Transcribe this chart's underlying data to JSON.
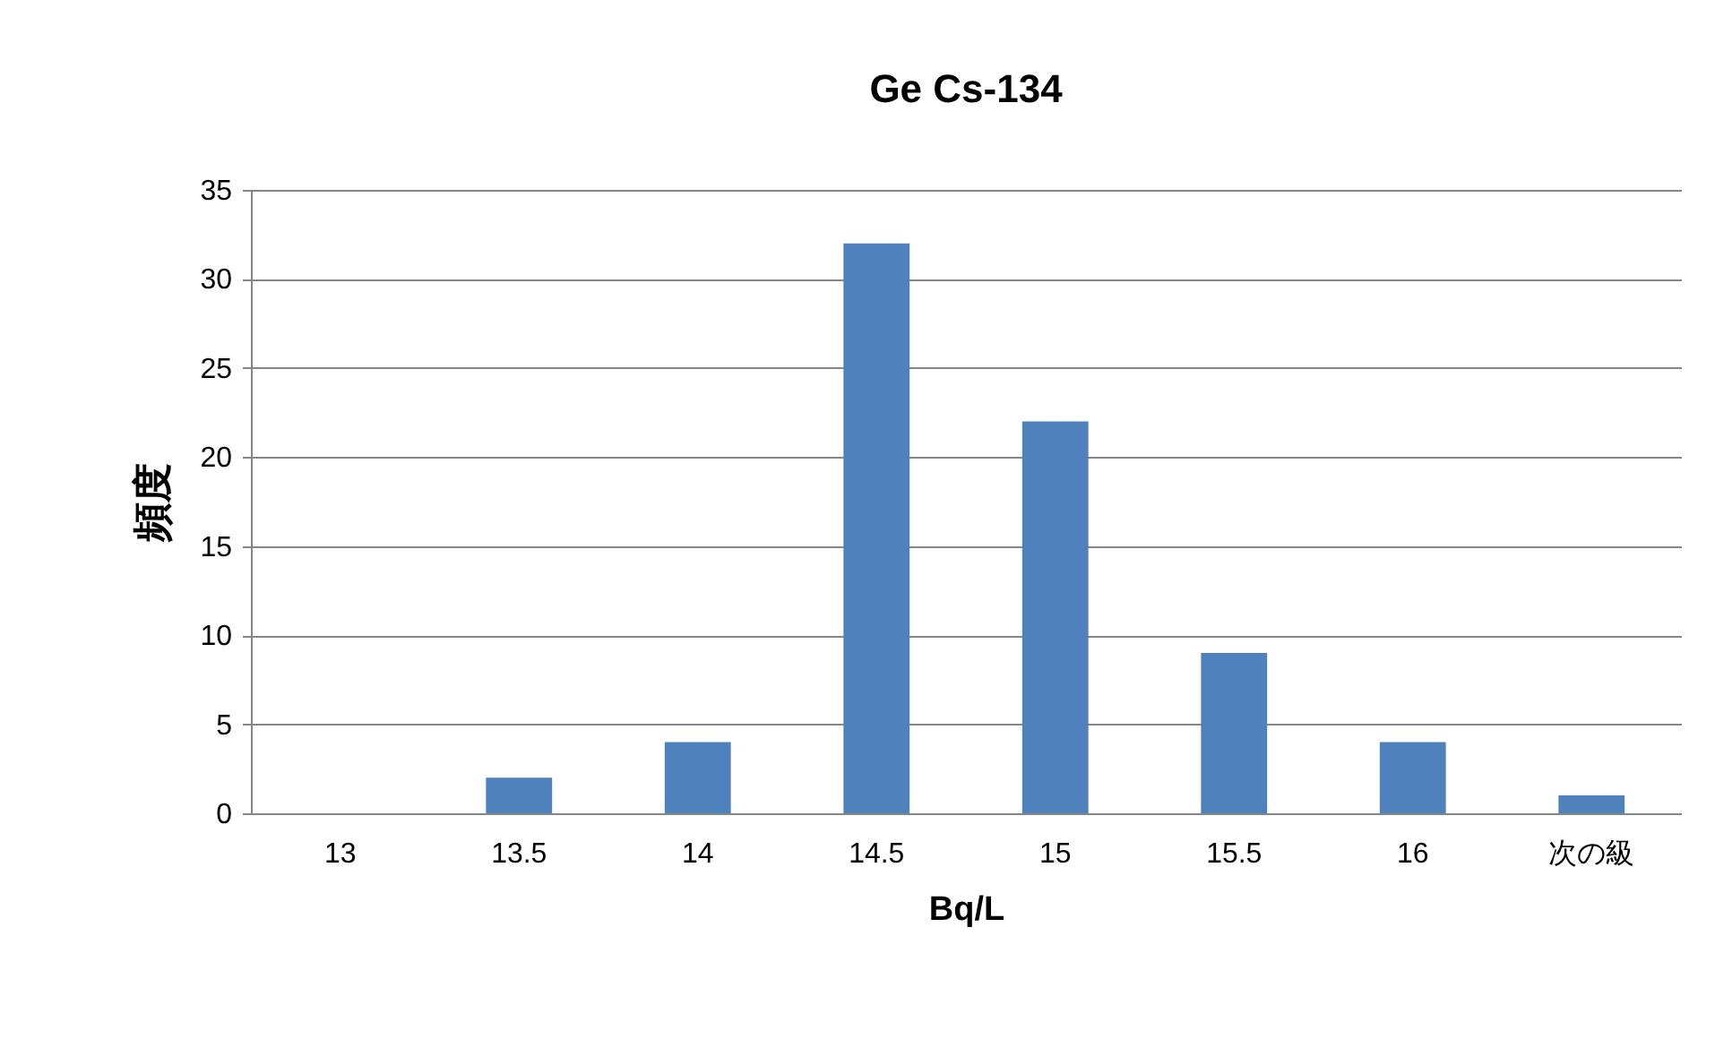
{
  "chart_data": {
    "type": "bar",
    "title": "Ge  Cs-134",
    "xlabel": "Bq/L",
    "ylabel": "頻度",
    "categories": [
      "13",
      "13.5",
      "14",
      "14.5",
      "15",
      "15.5",
      "16",
      "次の級"
    ],
    "values": [
      0,
      2,
      4,
      32,
      22,
      9,
      4,
      1
    ],
    "color": "#4f81bd",
    "ylim": [
      0,
      35
    ],
    "yticks": [
      0,
      5,
      10,
      15,
      20,
      25,
      30,
      35
    ],
    "grid": "y"
  }
}
